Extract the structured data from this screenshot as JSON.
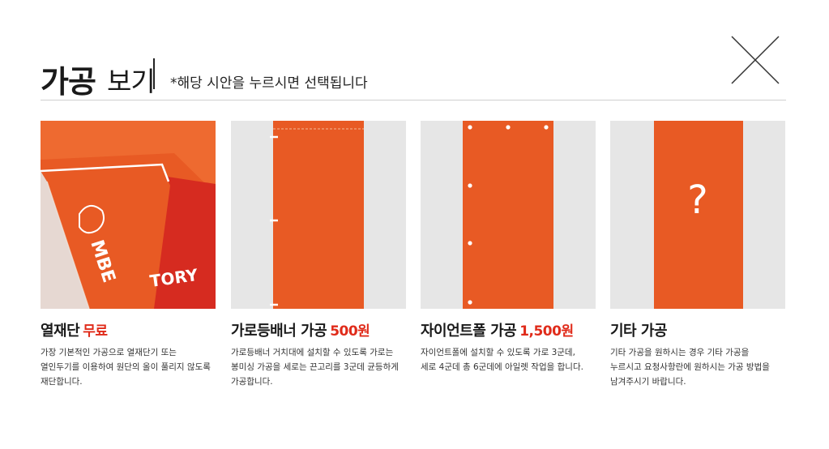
{
  "header": {
    "title_main": "가공",
    "title_sub": "보기",
    "notice": "*해당 시안을 누르시면 선택됩니다"
  },
  "colors": {
    "banner_orange": "#e85a24",
    "price_red": "#e02b1a",
    "gray_bg": "#e6e6e6"
  },
  "options": [
    {
      "name": "열재단",
      "price": "무료",
      "desc": "가장 기본적인 가공으로 열재단기 또는 열인두기를 이용하여 원단의 올이 풀리지 않도록 재단합니다.",
      "image_text": "TORY",
      "icon": "heat-cut-photo"
    },
    {
      "name": "가로등배너 가공",
      "price": "500원",
      "desc": "가로등배너 거치대에 설치할 수 있도록 가로는 봉미싱 가공을 세로는 끈고리를 3군데 균등하게 가공합니다.",
      "icon": "streetlight-banner-diagram"
    },
    {
      "name": "자이언트폴 가공",
      "price": "1,500원",
      "desc": "자이언트폴에 설치할 수 있도록 가로 3군데, 세로 4군데 총 6군데에 아일렛 작업을 합니다.",
      "icon": "giant-pole-diagram"
    },
    {
      "name": "기타 가공",
      "price": "",
      "desc": "기타 가공을 원하시는 경우 기타 가공을 누르시고 요청사항란에 원하시는 가공 방법을 남겨주시기 바랍니다.",
      "image_text": "?",
      "icon": "question-mark-icon"
    }
  ]
}
